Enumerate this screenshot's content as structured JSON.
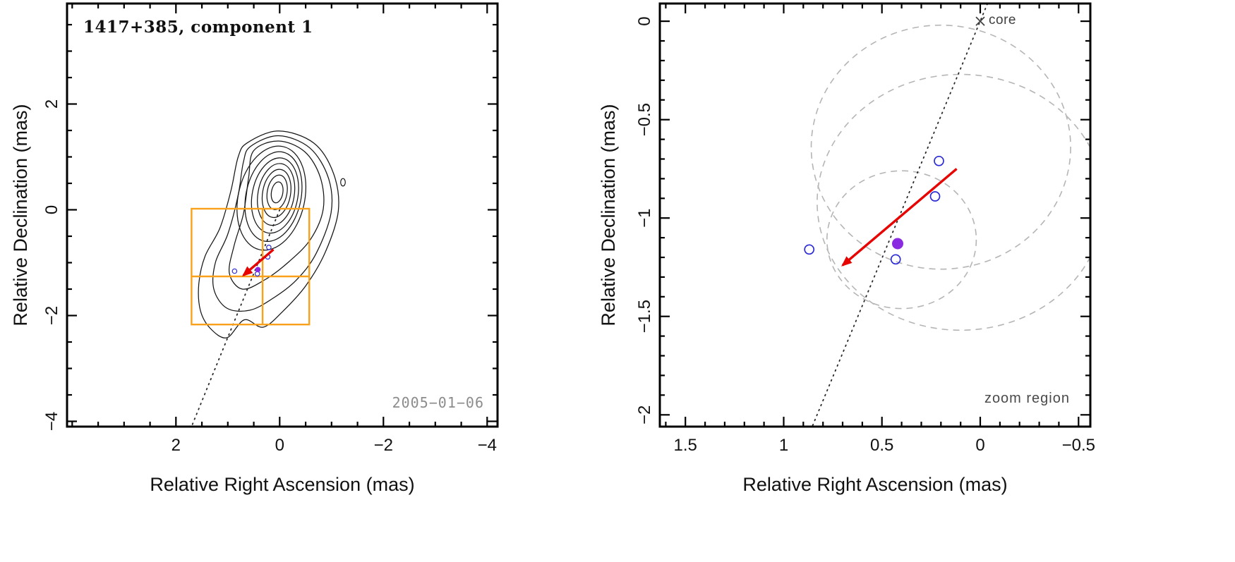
{
  "chart_data": [
    {
      "id": "left",
      "type": "contour",
      "title": "1417+385, component 1",
      "annotation_date": "2005−01−06",
      "xlabel": "Relative Right Ascension (mas)",
      "ylabel": "Relative Declination (mas)",
      "xlim": [
        4.1,
        -4.2
      ],
      "ylim": [
        -4.1,
        3.9
      ],
      "xticks": [
        {
          "v": 2,
          "label": "2"
        },
        {
          "v": 0,
          "label": "0"
        },
        {
          "v": -2,
          "label": "−2"
        },
        {
          "v": -4,
          "label": "−4"
        }
      ],
      "yticks": [
        {
          "v": 2,
          "label": "2"
        },
        {
          "v": 0,
          "label": "0"
        },
        {
          "v": -2,
          "label": "−2"
        },
        {
          "v": -4,
          "label": "−4"
        }
      ],
      "minor_tick_step": 0.5,
      "contour_ellipses": [
        {
          "cx": 0.05,
          "cy": 0.33,
          "rx": 0.11,
          "ry": 0.2,
          "rot": 10
        },
        {
          "cx": 0.05,
          "cy": 0.33,
          "rx": 0.19,
          "ry": 0.33,
          "rot": 10
        },
        {
          "cx": 0.06,
          "cy": 0.31,
          "rx": 0.27,
          "ry": 0.46,
          "rot": 10
        },
        {
          "cx": 0.07,
          "cy": 0.29,
          "rx": 0.35,
          "ry": 0.59,
          "rot": 10
        },
        {
          "cx": 0.09,
          "cy": 0.27,
          "rx": 0.44,
          "ry": 0.72,
          "rot": 11
        },
        {
          "cx": 0.12,
          "cy": 0.25,
          "rx": 0.53,
          "ry": 0.86,
          "rot": 12
        },
        {
          "cx": 0.16,
          "cy": 0.22,
          "rx": 0.64,
          "ry": 1.0,
          "rot": 13
        }
      ],
      "contour_outlines": [
        [
          [
            0.5,
            1.12
          ],
          [
            0.02,
            1.3
          ],
          [
            -0.48,
            1.1
          ],
          [
            -0.78,
            0.62
          ],
          [
            -0.84,
            0.02
          ],
          [
            -0.6,
            -0.55
          ],
          [
            -0.18,
            -0.98
          ],
          [
            0.28,
            -1.32
          ],
          [
            0.72,
            -1.5
          ],
          [
            0.97,
            -1.2
          ],
          [
            0.88,
            -0.68
          ],
          [
            0.7,
            -0.08
          ],
          [
            0.6,
            0.6
          ]
        ],
        [
          [
            0.56,
            1.2
          ],
          [
            0.02,
            1.4
          ],
          [
            -0.58,
            1.17
          ],
          [
            -0.94,
            0.6
          ],
          [
            -0.99,
            -0.06
          ],
          [
            -0.7,
            -0.83
          ],
          [
            -0.32,
            -1.33
          ],
          [
            0.14,
            -1.68
          ],
          [
            0.58,
            -1.9
          ],
          [
            1.02,
            -1.86
          ],
          [
            1.27,
            -1.5
          ],
          [
            1.24,
            -1.0
          ],
          [
            1.0,
            -0.46
          ],
          [
            0.8,
            0.28
          ],
          [
            0.7,
            0.9
          ]
        ],
        [
          [
            0.62,
            1.27
          ],
          [
            0.02,
            1.49
          ],
          [
            -0.66,
            1.26
          ],
          [
            -1.04,
            0.68
          ],
          [
            -1.13,
            -0.02
          ],
          [
            -0.88,
            -0.8
          ],
          [
            -0.5,
            -1.44
          ],
          [
            -0.05,
            -1.93
          ],
          [
            0.32,
            -2.22
          ],
          [
            0.68,
            -2.08
          ],
          [
            1.02,
            -2.42
          ],
          [
            1.34,
            -2.24
          ],
          [
            1.53,
            -1.9
          ],
          [
            1.56,
            -1.4
          ],
          [
            1.44,
            -0.88
          ],
          [
            1.15,
            -0.34
          ],
          [
            0.94,
            0.36
          ],
          [
            0.8,
            1.0
          ]
        ]
      ],
      "contour_speck": {
        "cx": -1.22,
        "cy": 0.52,
        "rx": 0.045,
        "ry": 0.07
      },
      "zoom_box": {
        "x_left": 1.7,
        "x_right": -0.57,
        "y_top": 0.02,
        "y_bottom": -2.17,
        "inner_hline_dec": -1.26,
        "inner_vline_ra": 0.33,
        "color": "#F9A11B"
      },
      "jet_axis_dotted": {
        "from": [
          0,
          0
        ],
        "to": [
          1.7,
          -4.1
        ]
      },
      "arrow": {
        "from": [
          0.12,
          -0.75
        ],
        "to": [
          0.7,
          -1.24
        ],
        "color": "#E60300"
      },
      "components_open": [
        [
          0.87,
          -1.16
        ],
        [
          0.21,
          -0.71
        ],
        [
          0.23,
          -0.89
        ],
        [
          0.43,
          -1.21
        ]
      ],
      "component_filled": [
        0.42,
        -1.13
      ],
      "open_color": "#2B2BD5",
      "filled_color": "#8A2BE2",
      "point_radius": {
        "open": 3.2,
        "filled": 3.8
      }
    },
    {
      "id": "right",
      "type": "scatter",
      "xlabel": "Relative Right Ascension (mas)",
      "ylabel": "Relative Declination (mas)",
      "zoom_label": "zoom region",
      "core": {
        "x": 0,
        "y": 0,
        "label": "core"
      },
      "xlim": [
        1.63,
        -0.56
      ],
      "ylim": [
        -2.06,
        0.09
      ],
      "xticks": [
        {
          "v": 1.5,
          "label": "1.5"
        },
        {
          "v": 1,
          "label": "1"
        },
        {
          "v": 0.5,
          "label": "0.5"
        },
        {
          "v": 0,
          "label": "0"
        },
        {
          "v": -0.5,
          "label": "−0.5"
        }
      ],
      "yticks": [
        {
          "v": 0,
          "label": "0"
        },
        {
          "v": -0.5,
          "label": "−0.5"
        },
        {
          "v": -1,
          "label": "−1"
        },
        {
          "v": -1.5,
          "label": "−1.5"
        },
        {
          "v": -2,
          "label": "−2"
        }
      ],
      "minor_tick_step": 0.1,
      "dashed_ellipses": [
        {
          "cx": 0.2,
          "cy": -0.64,
          "rx": 0.66,
          "ry": 0.62
        },
        {
          "cx": 0.1,
          "cy": -0.92,
          "rx": 0.73,
          "ry": 0.65
        },
        {
          "cx": 0.4,
          "cy": -1.11,
          "rx": 0.38,
          "ry": 0.35
        }
      ],
      "jet_axis_dotted": {
        "from": [
          -0.037,
          0.09
        ],
        "to": [
          0.855,
          -2.06
        ]
      },
      "arrow": {
        "from": [
          0.12,
          -0.75
        ],
        "to": [
          0.7,
          -1.24
        ],
        "color": "#E60300"
      },
      "components_open": [
        [
          0.87,
          -1.16
        ],
        [
          0.21,
          -0.71
        ],
        [
          0.23,
          -0.89
        ],
        [
          0.43,
          -1.21
        ]
      ],
      "component_filled": [
        0.42,
        -1.13
      ],
      "open_color": "#2B2BD5",
      "filled_color": "#8A2BE2",
      "point_radius": {
        "open": 6.5,
        "filled": 8
      }
    }
  ]
}
